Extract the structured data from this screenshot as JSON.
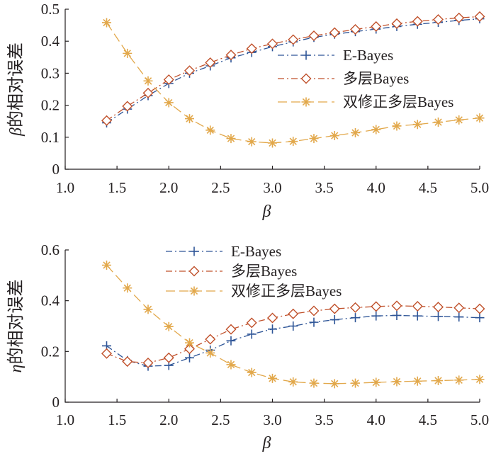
{
  "colors": {
    "e_bayes": "#2e5597",
    "hier_bayes": "#c0502a",
    "dc_hier_bayes": "#e2a84b",
    "axis": "#231f20"
  },
  "chart_data": [
    {
      "type": "line",
      "xlabel": "β",
      "ylabel": "β的相对误差",
      "xlim": [
        1.0,
        5.0
      ],
      "ylim": [
        0,
        0.5
      ],
      "xticks": [
        "1.0",
        "1.5",
        "2.0",
        "2.5",
        "3.0",
        "3.5",
        "4.0",
        "4.5",
        "5.0"
      ],
      "yticks": [
        "0",
        "0.1",
        "0.2",
        "0.3",
        "0.4",
        "0.5"
      ],
      "legend_position": "right",
      "grid": false,
      "x": [
        1.4,
        1.6,
        1.8,
        2.0,
        2.2,
        2.4,
        2.6,
        2.8,
        3.0,
        3.2,
        3.4,
        3.6,
        3.8,
        4.0,
        4.2,
        4.4,
        4.6,
        4.8,
        5.0
      ],
      "series": [
        {
          "name": "E-Bayes",
          "color": "#2e5597",
          "marker": "plus",
          "dash": "dashdot",
          "values": [
            0.145,
            0.188,
            0.23,
            0.268,
            0.3,
            0.323,
            0.348,
            0.365,
            0.383,
            0.398,
            0.412,
            0.422,
            0.43,
            0.438,
            0.446,
            0.453,
            0.459,
            0.465,
            0.47
          ]
        },
        {
          "name": "多层Bayes",
          "color": "#c0502a",
          "marker": "diamond",
          "dash": "dashdot",
          "values": [
            0.152,
            0.197,
            0.238,
            0.28,
            0.308,
            0.333,
            0.357,
            0.377,
            0.392,
            0.405,
            0.417,
            0.427,
            0.437,
            0.446,
            0.455,
            0.462,
            0.468,
            0.473,
            0.477
          ]
        },
        {
          "name": "双修正多层Bayes",
          "color": "#e2a84b",
          "marker": "asterisk",
          "dash": "longdash",
          "values": [
            0.458,
            0.362,
            0.276,
            0.208,
            0.158,
            0.122,
            0.096,
            0.086,
            0.082,
            0.087,
            0.096,
            0.105,
            0.114,
            0.124,
            0.135,
            0.14,
            0.147,
            0.154,
            0.16
          ]
        }
      ]
    },
    {
      "type": "line",
      "xlabel": "β",
      "ylabel": "η的相对误差",
      "xlim": [
        1.0,
        5.0
      ],
      "ylim": [
        0,
        0.6
      ],
      "xticks": [
        "1.0",
        "1.5",
        "2.0",
        "2.5",
        "3.0",
        "3.5",
        "4.0",
        "4.5",
        "5.0"
      ],
      "yticks": [
        "0",
        "0.2",
        "0.4",
        "0.6"
      ],
      "legend_position": "top",
      "grid": false,
      "x": [
        1.4,
        1.6,
        1.8,
        2.0,
        2.2,
        2.4,
        2.6,
        2.8,
        3.0,
        3.2,
        3.4,
        3.6,
        3.8,
        4.0,
        4.2,
        4.4,
        4.6,
        4.8,
        5.0
      ],
      "series": [
        {
          "name": "E-Bayes",
          "color": "#2e5597",
          "marker": "plus",
          "dash": "dashdot",
          "values": [
            0.222,
            0.164,
            0.142,
            0.145,
            0.175,
            0.205,
            0.242,
            0.268,
            0.288,
            0.3,
            0.315,
            0.325,
            0.333,
            0.34,
            0.342,
            0.34,
            0.338,
            0.336,
            0.333
          ]
        },
        {
          "name": "多层Bayes",
          "color": "#c0502a",
          "marker": "diamond",
          "dash": "dashdot",
          "values": [
            0.192,
            0.16,
            0.155,
            0.175,
            0.21,
            0.248,
            0.287,
            0.313,
            0.332,
            0.348,
            0.36,
            0.368,
            0.373,
            0.377,
            0.38,
            0.378,
            0.375,
            0.372,
            0.368
          ]
        },
        {
          "name": "双修正多层Bayes",
          "color": "#e2a84b",
          "marker": "asterisk",
          "dash": "longdash",
          "values": [
            0.54,
            0.45,
            0.366,
            0.298,
            0.234,
            0.194,
            0.148,
            0.117,
            0.094,
            0.08,
            0.075,
            0.073,
            0.075,
            0.078,
            0.081,
            0.083,
            0.085,
            0.087,
            0.09
          ]
        }
      ]
    }
  ]
}
